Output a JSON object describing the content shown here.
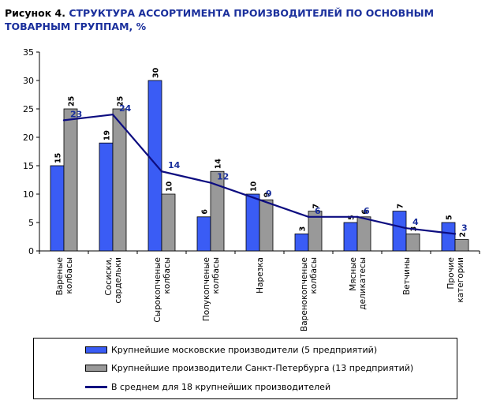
{
  "title": {
    "lead": "Рисунок 4.",
    "main": "СТРУКТУРА АССОРТИМЕНТА ПРОИЗВОДИТЕЛЕЙ ПО ОСНОВНЫМ ТОВАРНЫМ ГРУППАМ, %"
  },
  "colors": {
    "moscow": "#3a5cf5",
    "spb": "#999999",
    "average": "#0d0d80",
    "average_label": "#1a2f9c"
  },
  "chart_data": {
    "type": "bar",
    "categories": [
      [
        "Вареные",
        "колбасы"
      ],
      [
        "Сосиски,",
        "сардельки"
      ],
      [
        "Сырокопченые",
        "колбасы"
      ],
      [
        "Полукопченые",
        "колбасы"
      ],
      [
        "Нарезка"
      ],
      [
        "Варенокопченые",
        "колбасы"
      ],
      [
        "Мясные",
        "деликатесы"
      ],
      [
        "Ветчины"
      ],
      [
        "Прочие",
        "категории"
      ]
    ],
    "series": [
      {
        "name": "Крупнейшие московские производители (5 предприятий)",
        "kind": "bar",
        "values": [
          15,
          19,
          30,
          6,
          10,
          3,
          5,
          7,
          5
        ]
      },
      {
        "name": "Крупнейшие производители Санкт-Петербурга (13 предприятий)",
        "kind": "bar",
        "values": [
          25,
          25,
          10,
          14,
          9,
          7,
          6,
          3,
          2
        ]
      },
      {
        "name": "В среднем для 18 крупнейших производителей",
        "kind": "line",
        "values": [
          23,
          24,
          14,
          12,
          9,
          6,
          6,
          4,
          3
        ]
      }
    ],
    "ylim": [
      0,
      35
    ],
    "yticks": [
      0,
      5,
      10,
      15,
      20,
      25,
      30,
      35
    ],
    "grid": false,
    "legend_position": "bottom"
  }
}
